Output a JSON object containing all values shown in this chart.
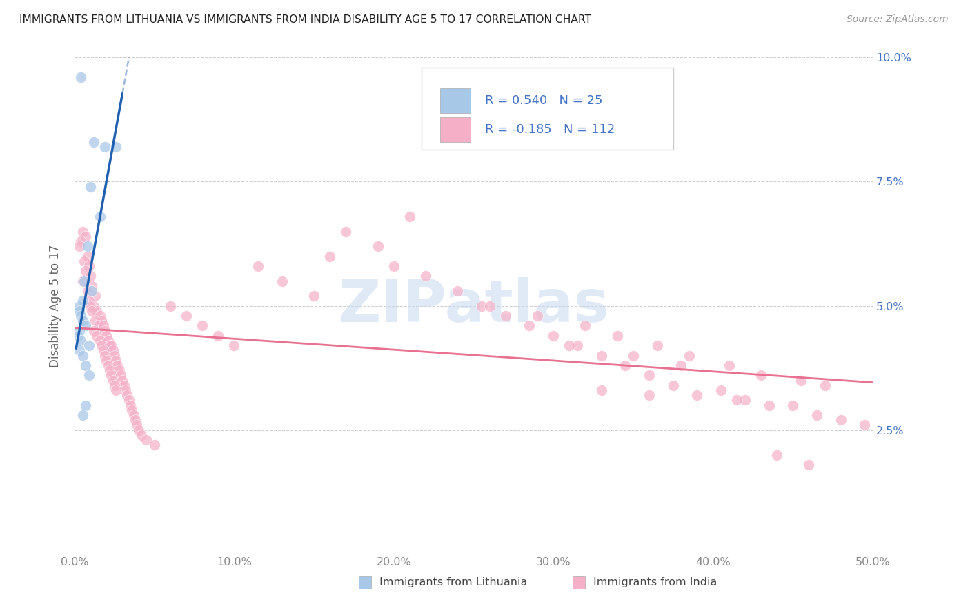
{
  "title": "IMMIGRANTS FROM LITHUANIA VS IMMIGRANTS FROM INDIA DISABILITY AGE 5 TO 17 CORRELATION CHART",
  "source": "Source: ZipAtlas.com",
  "ylabel": "Disability Age 5 to 17",
  "xlim": [
    0.0,
    0.5
  ],
  "ylim": [
    0.0,
    0.1
  ],
  "xticks": [
    0.0,
    0.1,
    0.2,
    0.3,
    0.4,
    0.5
  ],
  "xtick_labels": [
    "0.0%",
    "10.0%",
    "20.0%",
    "30.0%",
    "40.0%",
    "50.0%"
  ],
  "yticks": [
    0.0,
    0.025,
    0.05,
    0.075,
    0.1
  ],
  "ytick_labels_left": [
    "",
    "",
    "",
    "",
    ""
  ],
  "ytick_labels_right": [
    "",
    "2.5%",
    "5.0%",
    "7.5%",
    "10.0%"
  ],
  "R_lith": "0.540",
  "R_india": "-0.185",
  "N_lith": "25",
  "N_india": "112",
  "blue_scatter_color": "#a8c8e8",
  "pink_scatter_color": "#f5b0c8",
  "blue_line_color": "#2060b0",
  "pink_line_color": "#e87090",
  "legend_R_color": "#4472c4",
  "legend_N_color": "#4472c4",
  "watermark_text": "ZIPatlas",
  "watermark_color": "#c8daf0",
  "background_color": "#ffffff",
  "grid_color": "#d0d0d0",
  "title_color": "#222222",
  "source_color": "#999999",
  "axis_label_color": "#666666",
  "tick_color": "#888888",
  "right_tick_color": "#4472c4",
  "lith_x": [
    0.004,
    0.012,
    0.019,
    0.026,
    0.01,
    0.016,
    0.008,
    0.006,
    0.011,
    0.005,
    0.003,
    0.003,
    0.004,
    0.005,
    0.007,
    0.003,
    0.002,
    0.004,
    0.009,
    0.003,
    0.005,
    0.007,
    0.009,
    0.007,
    0.005
  ],
  "lith_y": [
    0.096,
    0.083,
    0.082,
    0.082,
    0.074,
    0.068,
    0.062,
    0.055,
    0.053,
    0.051,
    0.05,
    0.049,
    0.048,
    0.047,
    0.046,
    0.045,
    0.044,
    0.043,
    0.042,
    0.041,
    0.04,
    0.038,
    0.036,
    0.03,
    0.028
  ],
  "india_x": [
    0.005,
    0.007,
    0.004,
    0.003,
    0.008,
    0.006,
    0.009,
    0.007,
    0.01,
    0.005,
    0.011,
    0.008,
    0.013,
    0.009,
    0.012,
    0.01,
    0.014,
    0.011,
    0.016,
    0.013,
    0.017,
    0.015,
    0.018,
    0.012,
    0.019,
    0.014,
    0.02,
    0.016,
    0.021,
    0.017,
    0.022,
    0.023,
    0.018,
    0.024,
    0.019,
    0.025,
    0.02,
    0.026,
    0.021,
    0.027,
    0.022,
    0.028,
    0.023,
    0.029,
    0.024,
    0.03,
    0.031,
    0.025,
    0.032,
    0.026,
    0.033,
    0.034,
    0.035,
    0.036,
    0.037,
    0.038,
    0.039,
    0.04,
    0.042,
    0.045,
    0.05,
    0.06,
    0.07,
    0.08,
    0.09,
    0.1,
    0.115,
    0.13,
    0.15,
    0.17,
    0.19,
    0.21,
    0.16,
    0.2,
    0.22,
    0.24,
    0.255,
    0.27,
    0.285,
    0.3,
    0.315,
    0.33,
    0.345,
    0.36,
    0.375,
    0.39,
    0.405,
    0.42,
    0.435,
    0.45,
    0.465,
    0.48,
    0.495,
    0.31,
    0.35,
    0.38,
    0.26,
    0.29,
    0.32,
    0.34,
    0.365,
    0.385,
    0.41,
    0.43,
    0.455,
    0.47,
    0.33,
    0.36,
    0.415,
    0.44,
    0.46
  ],
  "india_y": [
    0.065,
    0.064,
    0.063,
    0.062,
    0.06,
    0.059,
    0.058,
    0.057,
    0.056,
    0.055,
    0.054,
    0.053,
    0.052,
    0.051,
    0.05,
    0.05,
    0.049,
    0.049,
    0.048,
    0.047,
    0.047,
    0.046,
    0.046,
    0.045,
    0.045,
    0.044,
    0.044,
    0.043,
    0.043,
    0.042,
    0.042,
    0.042,
    0.041,
    0.041,
    0.04,
    0.04,
    0.039,
    0.039,
    0.038,
    0.038,
    0.037,
    0.037,
    0.036,
    0.036,
    0.035,
    0.035,
    0.034,
    0.034,
    0.033,
    0.033,
    0.032,
    0.031,
    0.03,
    0.029,
    0.028,
    0.027,
    0.026,
    0.025,
    0.024,
    0.023,
    0.022,
    0.05,
    0.048,
    0.046,
    0.044,
    0.042,
    0.058,
    0.055,
    0.052,
    0.065,
    0.062,
    0.068,
    0.06,
    0.058,
    0.056,
    0.053,
    0.05,
    0.048,
    0.046,
    0.044,
    0.042,
    0.04,
    0.038,
    0.036,
    0.034,
    0.032,
    0.033,
    0.031,
    0.03,
    0.03,
    0.028,
    0.027,
    0.026,
    0.042,
    0.04,
    0.038,
    0.05,
    0.048,
    0.046,
    0.044,
    0.042,
    0.04,
    0.038,
    0.036,
    0.035,
    0.034,
    0.033,
    0.032,
    0.031,
    0.02,
    0.018
  ]
}
